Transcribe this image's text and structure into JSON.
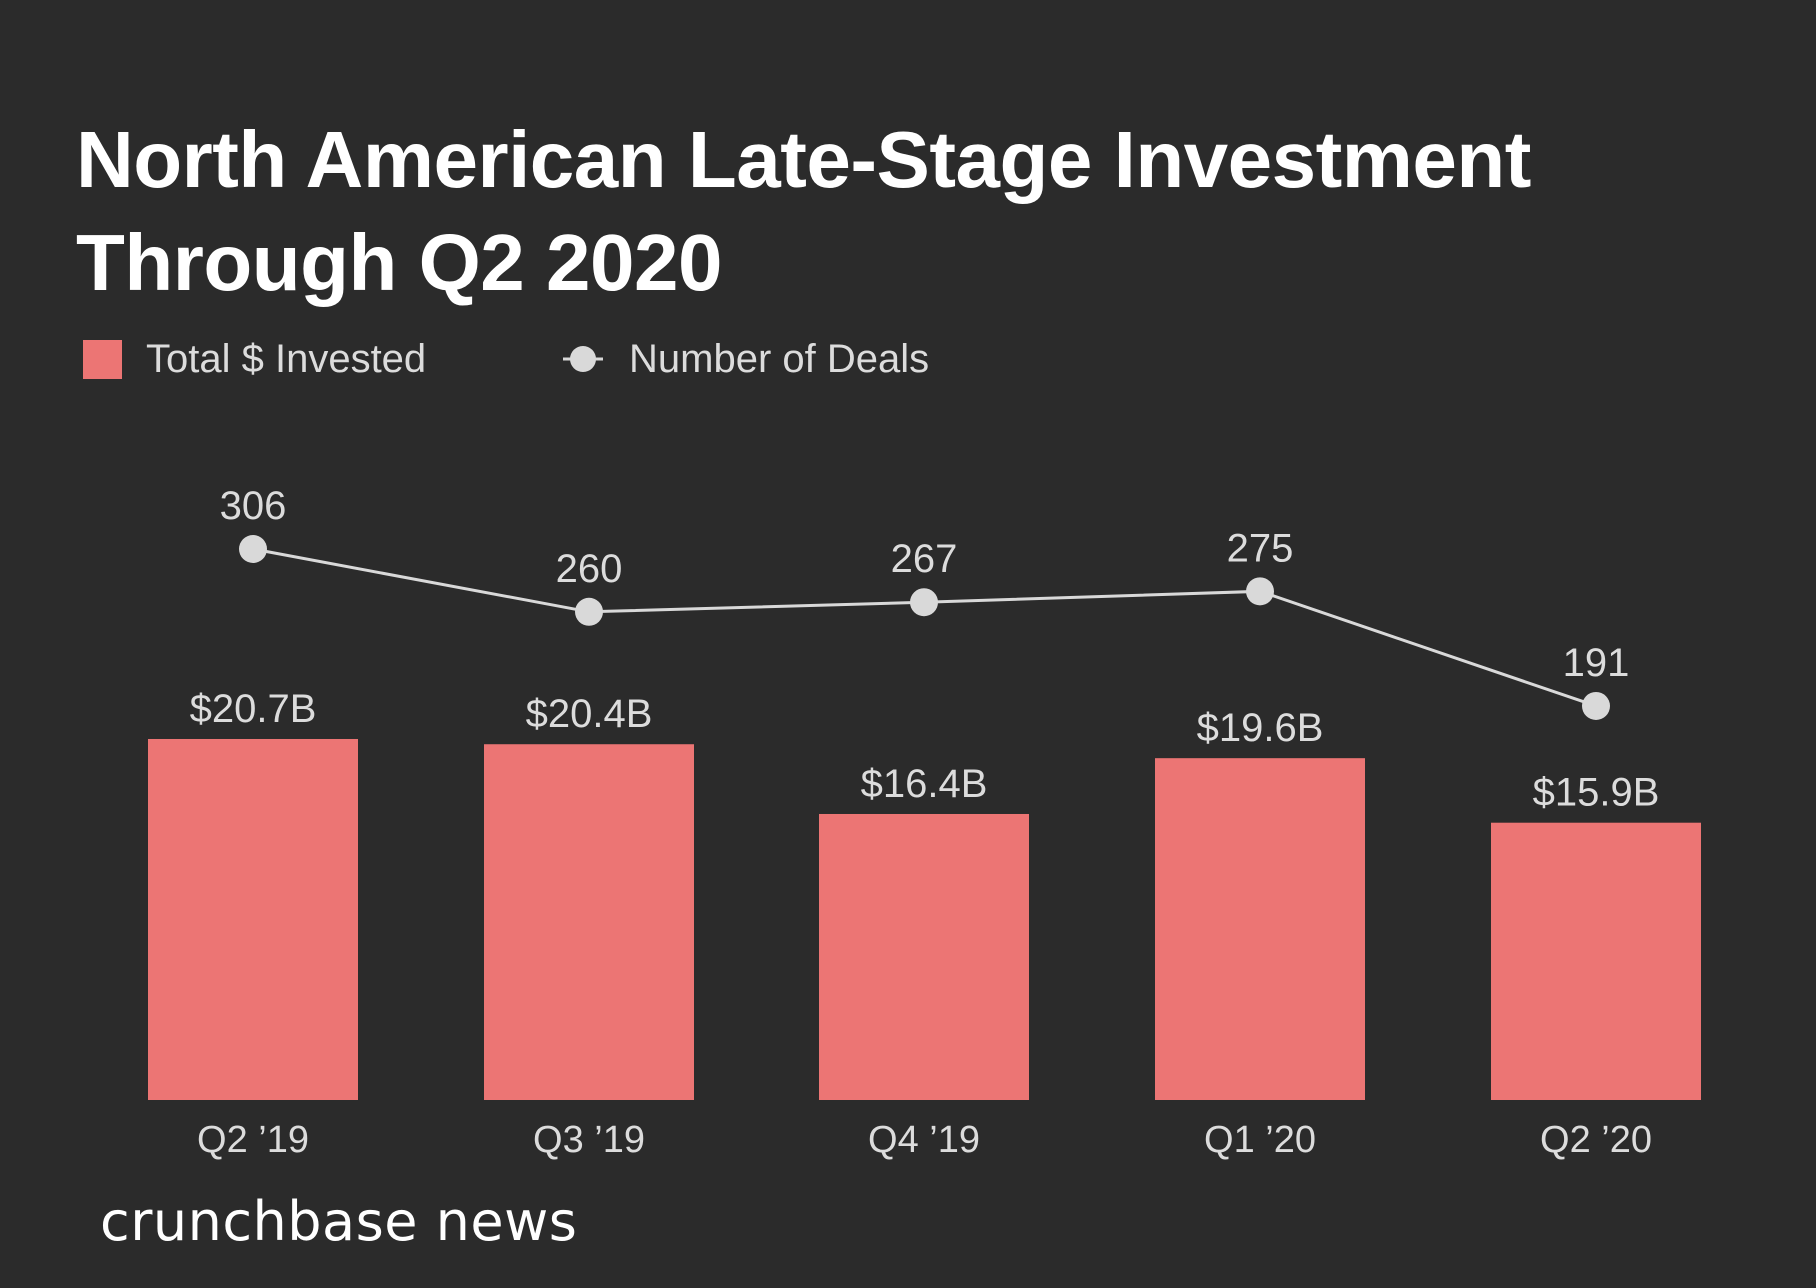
{
  "colors": {
    "background": "#2b2b2b",
    "bar": "#ec7574",
    "line": "#d9d9d9",
    "text": "#dcdcdc",
    "title": "#ffffff"
  },
  "title_line1": "North American Late-Stage Investment",
  "title_line2": "Through Q2 2020",
  "legend": [
    {
      "label": "Total $ Invested",
      "icon": "bar-swatch-icon"
    },
    {
      "label": "Number of Deals",
      "icon": "line-marker-icon"
    }
  ],
  "footer": {
    "logo": "crunchbase news"
  },
  "chart_data": {
    "type": "bar",
    "title": "North American Late-Stage Investment Through Q2 2020",
    "xlabel": "",
    "ylabel": "",
    "categories": [
      "Q2 ’19",
      "Q3 ’19",
      "Q4 ’19",
      "Q1 ’20",
      "Q2 ’20"
    ],
    "grid": false,
    "legend_position": "top-left",
    "series": [
      {
        "name": "Total $ Invested",
        "type": "bar",
        "unit": "USD billions",
        "values": [
          20.7,
          20.4,
          16.4,
          19.6,
          15.9
        ],
        "labels": [
          "$20.7B",
          "$20.4B",
          "$16.4B",
          "$19.6B",
          "$15.9B"
        ]
      },
      {
        "name": "Number of Deals",
        "type": "line",
        "values": [
          306,
          260,
          267,
          275,
          191
        ],
        "labels": [
          "306",
          "260",
          "267",
          "275",
          "191"
        ]
      }
    ]
  }
}
